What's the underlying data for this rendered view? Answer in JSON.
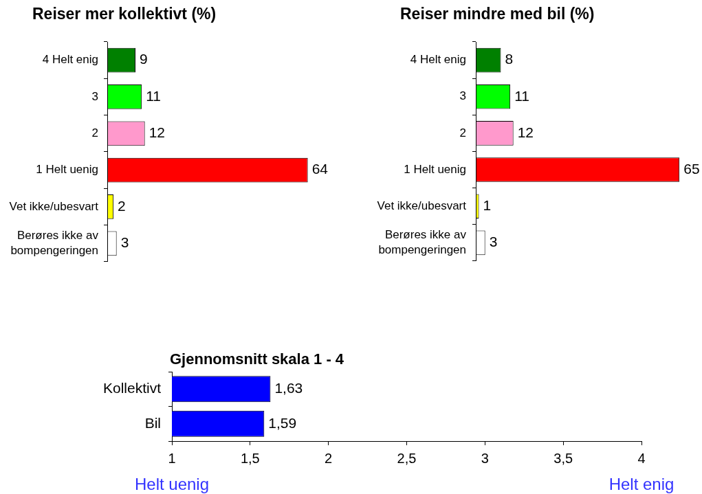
{
  "chart_data": [
    {
      "type": "bar",
      "orientation": "horizontal",
      "title": "Reiser mer kollektivt (%)",
      "categories": [
        "4 Helt enig",
        "3",
        "2",
        "1 Helt uenig",
        "Vet ikke/ubesvart",
        "Berøres ikke av bompengeringen"
      ],
      "values": [
        9,
        11,
        12,
        64,
        2,
        3
      ],
      "colors": [
        "#008000",
        "#00ff00",
        "#ff99cc",
        "#ff0000",
        "#ffff00",
        "#ffffff"
      ],
      "data_labels": true
    },
    {
      "type": "bar",
      "orientation": "horizontal",
      "title": "Reiser mindre med bil (%)",
      "categories": [
        "4 Helt enig",
        "3",
        "2",
        "1 Helt uenig",
        "Vet ikke/ubesvart",
        "Berøres ikke av bompengeringen"
      ],
      "values": [
        8,
        11,
        12,
        65,
        1,
        3
      ],
      "colors": [
        "#008000",
        "#00ff00",
        "#ff99cc",
        "#ff0000",
        "#ffff00",
        "#ffffff"
      ],
      "data_labels": true
    },
    {
      "type": "bar",
      "orientation": "horizontal",
      "title": "Gjennomsnitt skala 1 - 4",
      "categories": [
        "Kollektivt",
        "Bil"
      ],
      "values": [
        1.63,
        1.59
      ],
      "colors": [
        "#0000ff",
        "#0000ff"
      ],
      "value_labels": [
        "1,63",
        "1,59"
      ],
      "xlim": [
        1,
        4
      ],
      "xticks": [
        1,
        {
          "value": 1.5,
          "label": "1,5"
        },
        2,
        {
          "value": 2.5,
          "label": "2,5"
        },
        3,
        {
          "value": 3.5,
          "label": "3,5"
        },
        4
      ],
      "annotations": [
        "Helt uenig",
        "Helt enig"
      ]
    }
  ]
}
